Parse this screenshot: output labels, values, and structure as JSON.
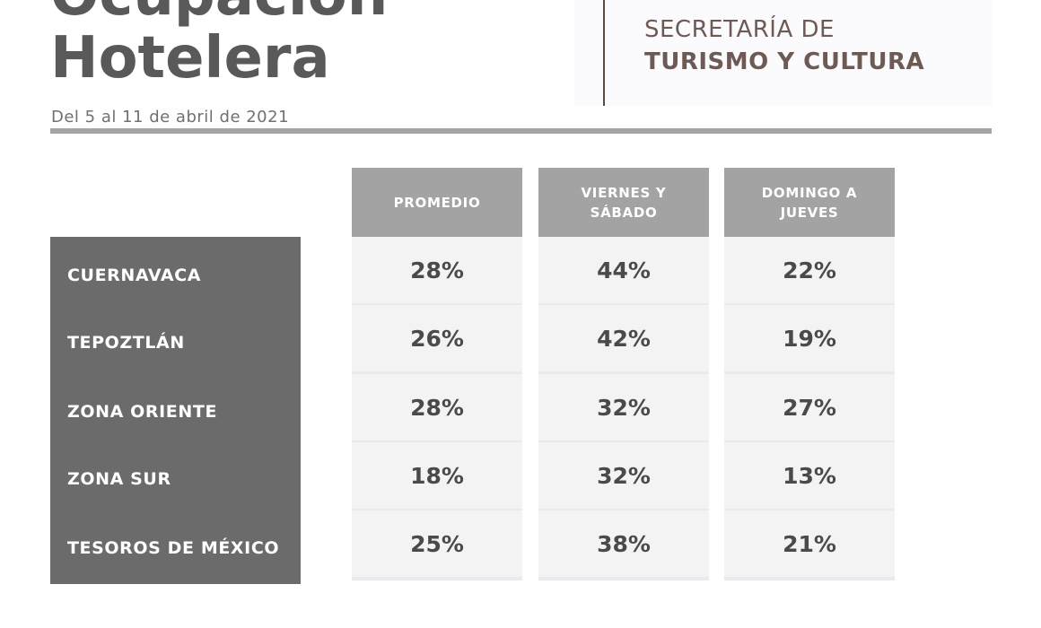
{
  "header": {
    "title_line1": "Ocupación",
    "title_line2": "Hotelera",
    "date_range": "Del 5 al 11 de abril de 2021"
  },
  "logo": {
    "line1": "SECRETARÍA DE",
    "line2": "TURISMO Y CULTURA"
  },
  "table": {
    "columns": [
      "PROMEDIO",
      "VIERNES Y SÁBADO",
      "DOMINGO A JUEVES"
    ],
    "column_lines": [
      [
        "PROMEDIO"
      ],
      [
        "VIERNES Y",
        "SÁBADO"
      ],
      [
        "DOMINGO A",
        "JUEVES"
      ]
    ],
    "rows": [
      {
        "label": "CUERNAVACA",
        "values": [
          "28%",
          "44%",
          "22%"
        ]
      },
      {
        "label": "TEPOZTLÁN",
        "values": [
          "26%",
          "42%",
          "19%"
        ]
      },
      {
        "label": "ZONA ORIENTE",
        "values": [
          "28%",
          "32%",
          "27%"
        ]
      },
      {
        "label": "ZONA SUR",
        "values": [
          "18%",
          "32%",
          "13%"
        ]
      },
      {
        "label": "TESOROS DE MÉXICO",
        "values": [
          "25%",
          "38%",
          "21%"
        ]
      }
    ]
  },
  "colors": {
    "label_panel": "#6b6b6b",
    "header_cell": "#a3a3a3",
    "value_cell": "#f3f3f3",
    "brand_text": "#6e5a55"
  }
}
